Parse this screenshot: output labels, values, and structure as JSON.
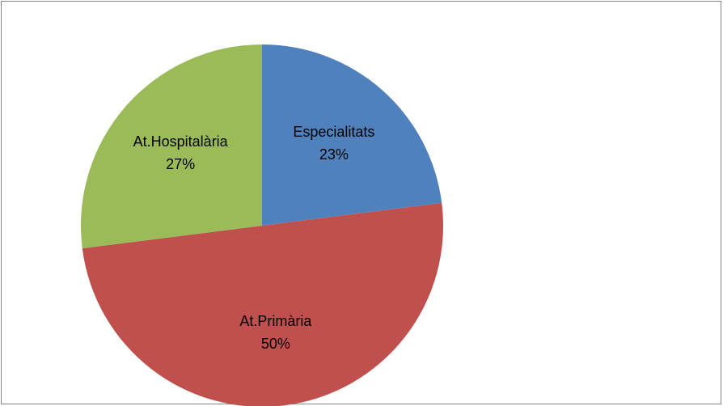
{
  "chart_data": {
    "type": "pie",
    "categories": [
      "Especialitats",
      "At.Primària",
      "At.Hospitalària"
    ],
    "values": [
      23,
      50,
      27
    ],
    "value_labels": [
      "23%",
      "50%",
      "27%"
    ],
    "colors": [
      "#4f81bd",
      "#c0504d",
      "#9bbb59"
    ]
  }
}
